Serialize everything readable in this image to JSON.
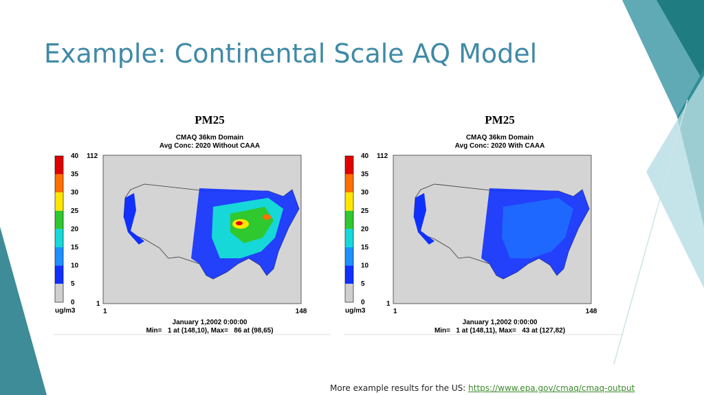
{
  "header": {
    "title": "Example: Continental Scale AQ Model"
  },
  "panels": [
    {
      "title": "PM25",
      "subtitle": [
        "CMAQ 36km Domain",
        "Avg Conc: 2020 Without CAAA"
      ],
      "colorbar": {
        "ticks": [
          "40",
          "35",
          "30",
          "25",
          "20",
          "15",
          "10",
          "5",
          "0"
        ],
        "unit": "ug/m3"
      },
      "axes": {
        "y_max": "112",
        "y_min": "1",
        "x_min": "1",
        "x_max": "148"
      },
      "date": "January 1,2002 0:00:00",
      "stats": "Min=   1 at (148,10), Max=   86 at (98,65)"
    },
    {
      "title": "PM25",
      "subtitle": [
        "CMAQ 36km Domain",
        "Avg Conc: 2020 With CAAA"
      ],
      "colorbar": {
        "ticks": [
          "40",
          "35",
          "30",
          "25",
          "20",
          "15",
          "10",
          "5",
          "0"
        ],
        "unit": "ug/m3"
      },
      "axes": {
        "y_max": "112",
        "y_min": "1",
        "x_min": "1",
        "x_max": "148"
      },
      "date": "January 1,2002 0:00:00",
      "stats": "Min=   1 at (148,11), Max=   43 at (127,82)"
    }
  ],
  "footer": {
    "text": "More example results for the US:",
    "link": "https://www.epa.gov/cmaq/cmaq-output"
  }
}
